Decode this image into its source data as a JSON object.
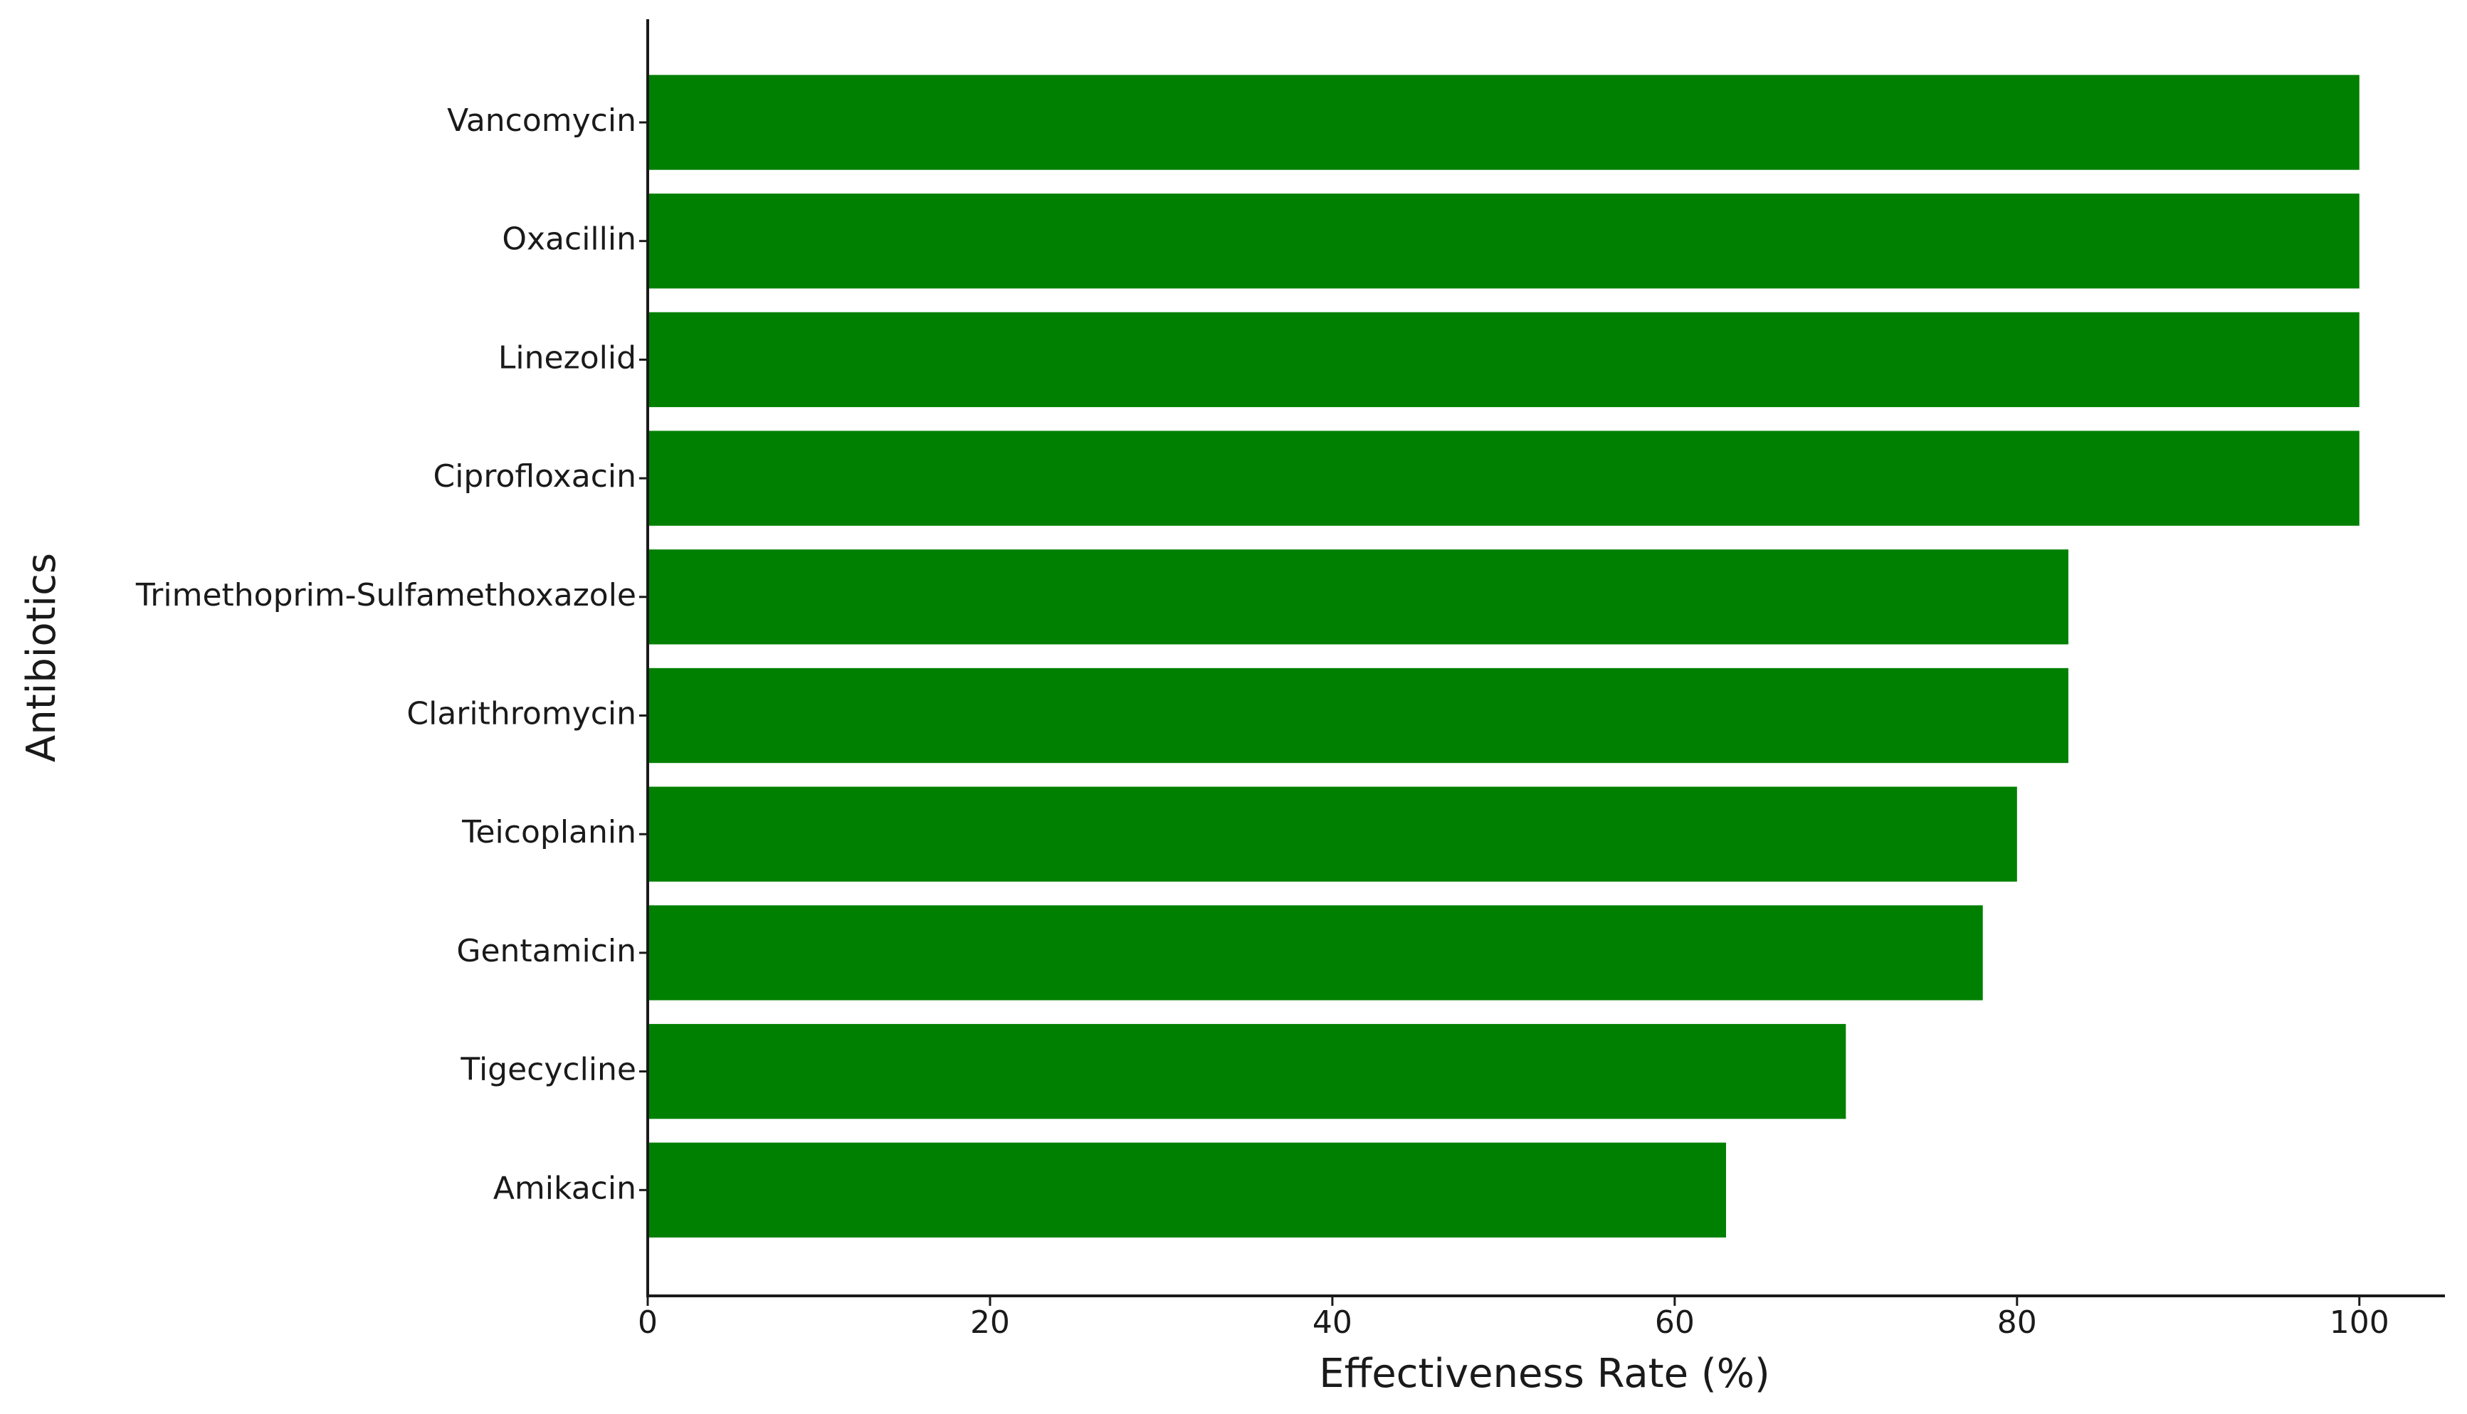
{
  "chart_data": {
    "type": "bar",
    "orientation": "horizontal",
    "x_label": "Effectiveness Rate (%)",
    "y_label": "Antibiotics",
    "categories": [
      "Vancomycin",
      "Oxacillin",
      "Linezolid",
      "Ciprofloxacin",
      "Trimethoprim-Sulfamethoxazole",
      "Clarithromycin",
      "Teicoplanin",
      "Gentamicin",
      "Tigecycline",
      "Amikacin"
    ],
    "values": [
      100,
      100,
      100,
      100,
      83,
      83,
      80,
      78,
      70,
      63
    ],
    "color": "#008000",
    "xlim": [
      0,
      105
    ],
    "xticks": [
      0,
      20,
      40,
      60,
      80,
      100
    ],
    "grid": false
  }
}
